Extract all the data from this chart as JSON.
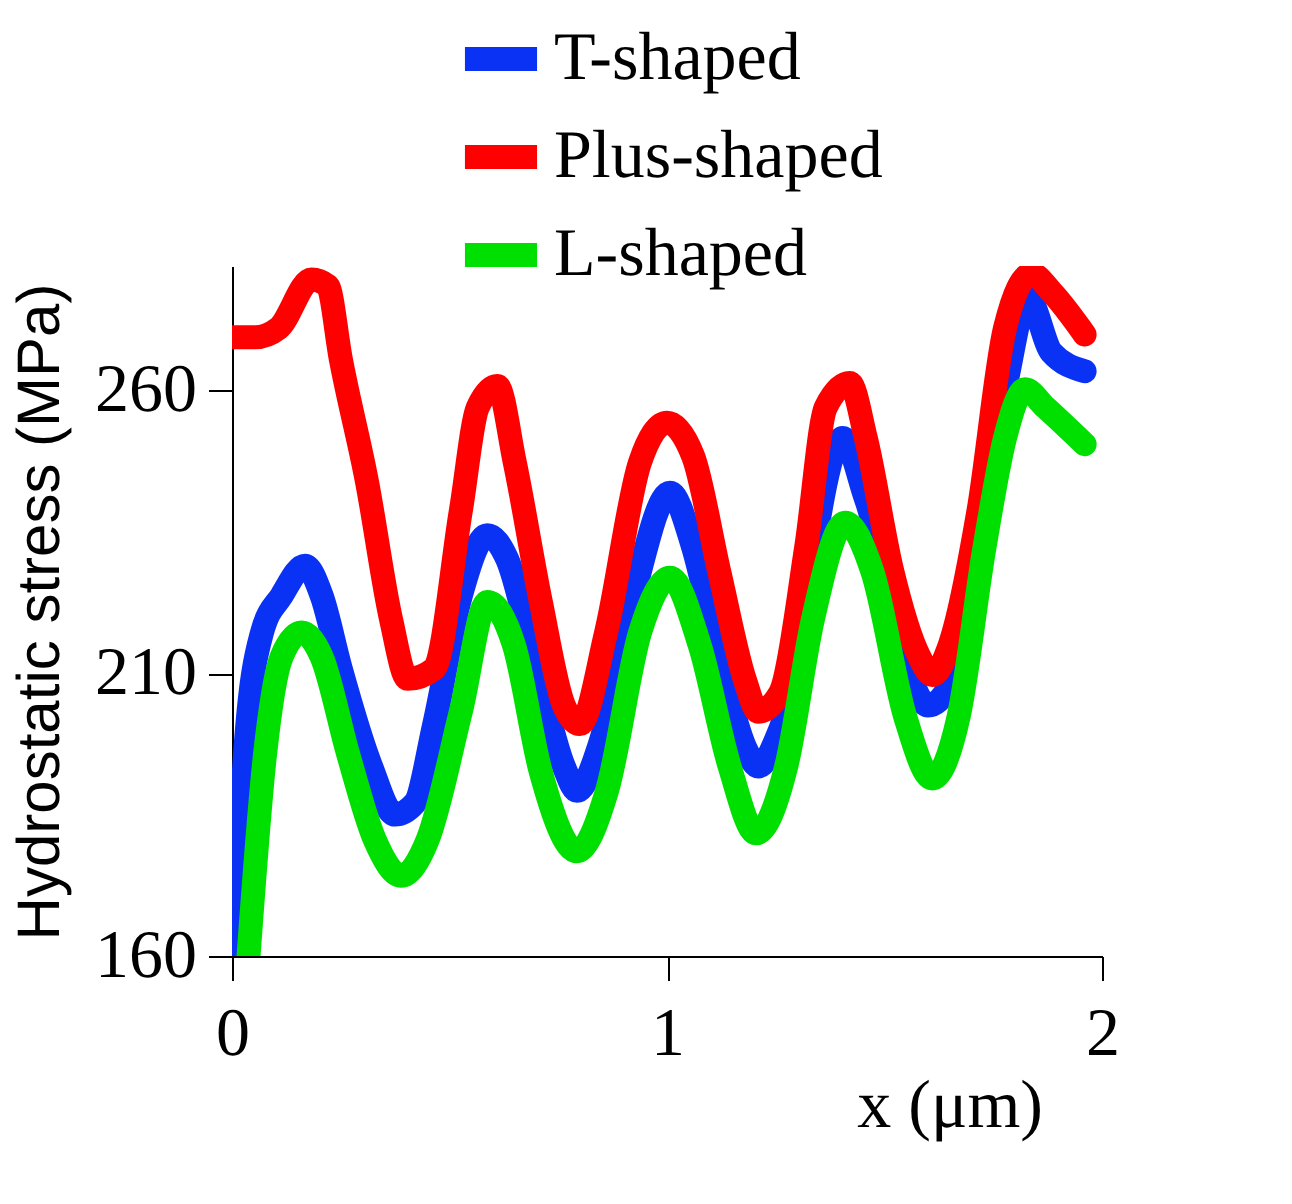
{
  "chart_data": {
    "type": "line",
    "xlabel": "x (μm)",
    "ylabel": "Hydrostatic stress (MPa)",
    "xlim": [
      0,
      2
    ],
    "xticks": [
      0,
      1,
      2
    ],
    "ylim": [
      160,
      282
    ],
    "yticks": [
      160,
      210,
      260
    ],
    "grid": false,
    "legend": "top right",
    "marker": "none",
    "line_style": "solid",
    "series": [
      {
        "name": "T-shaped",
        "color": "#0a32f5",
        "x": [
          0.008,
          0.03,
          0.069,
          0.114,
          0.168,
          0.206,
          0.25,
          0.32,
          0.374,
          0.42,
          0.465,
          0.526,
          0.587,
          0.633,
          0.694,
          0.763,
          0.793,
          0.847,
          0.923,
          1.007,
          1.06,
          1.12,
          1.18,
          1.21,
          1.26,
          1.404,
          1.457,
          1.6,
          1.655,
          1.777,
          1.83,
          1.884,
          1.96
        ],
        "values": [
          160,
          195.7,
          217.2,
          223.7,
          229,
          223.7,
          210.8,
          193.5,
          185,
          187,
          201,
          223.7,
          234.4,
          230.1,
          212.9,
          193.5,
          189.2,
          197.8,
          223.7,
          241.9,
          232.3,
          212.9,
          196.8,
          193.5,
          200,
          251.6,
          240.9,
          204.3,
          208.6,
          260.2,
          276.3,
          266.7,
          263.4
        ]
      },
      {
        "name": "Plus-shaped",
        "color": "#ff0000",
        "x": [
          0,
          0.053,
          0.107,
          0.183,
          0.22,
          0.25,
          0.31,
          0.366,
          0.404,
          0.465,
          0.526,
          0.565,
          0.61,
          0.65,
          0.71,
          0.763,
          0.8,
          0.86,
          0.938,
          1.0,
          1.06,
          1.12,
          1.18,
          1.21,
          1.26,
          1.32,
          1.365,
          1.42,
          1.457,
          1.518,
          1.58,
          1.61,
          1.65,
          1.716,
          1.777,
          1.838,
          1.884,
          1.96
        ],
        "values": [
          269.4,
          269.4,
          271,
          279.6,
          278.5,
          265.6,
          244,
          219.4,
          209,
          210.8,
          238.7,
          257,
          260.8,
          247.3,
          222.6,
          204.3,
          201,
          217.2,
          247.3,
          254.3,
          248.4,
          228,
          208.6,
          203.2,
          206.5,
          232.3,
          257,
          261.3,
          251.6,
          228,
          212.9,
          209.7,
          215,
          238.7,
          271,
          280.6,
          277.4,
          269.9
        ]
      },
      {
        "name": "L-shaped",
        "color": "#00e000",
        "x": [
          0.038,
          0.076,
          0.114,
          0.16,
          0.206,
          0.267,
          0.328,
          0.389,
          0.45,
          0.526,
          0.587,
          0.648,
          0.71,
          0.793,
          0.862,
          0.938,
          1.007,
          1.075,
          1.144,
          1.205,
          1.274,
          1.335,
          1.41,
          1.472,
          1.548,
          1.61,
          1.67,
          1.73,
          1.777,
          1.823,
          1.87,
          1.96
        ],
        "values": [
          160,
          195.7,
          212.9,
          217.2,
          212.9,
          195.7,
          180.6,
          174.2,
          180.6,
          203.2,
          222.6,
          215,
          192.5,
          178.5,
          189.2,
          217.2,
          226.9,
          215,
          193.5,
          181.7,
          193.5,
          219.4,
          236.6,
          228,
          202.2,
          191.4,
          202.2,
          232.3,
          251.6,
          260.2,
          257,
          250.5
        ]
      }
    ]
  }
}
